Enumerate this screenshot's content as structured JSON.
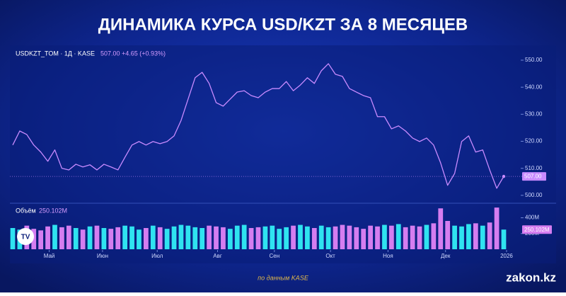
{
  "chart_data": {
    "type": "line",
    "title": "ДИНАМИКА КУРСА USD/KZT ЗА 8 МЕСЯЦЕВ",
    "symbol": "USDKZT_TOM · 1Д · KASE",
    "last_price": "507.00",
    "change": "+4.65 (+0.93%)",
    "source": "по данным KASE",
    "brand": "zakon.kz",
    "series": [
      {
        "color": "#c98bff",
        "values": [
          518.6,
          523.8,
          522.5,
          518.6,
          516,
          512.6,
          516.8,
          510,
          509.4,
          511.5,
          510.5,
          511.3,
          509.4,
          511.5,
          510.5,
          509.4,
          514.1,
          518.6,
          519.9,
          518.6,
          519.9,
          519.1,
          519.9,
          522,
          527.7,
          535.6,
          543.5,
          545.5,
          541.4,
          534.3,
          533,
          535.6,
          538.2,
          538.7,
          536.9,
          536.1,
          538.2,
          539.5,
          539.5,
          542.1,
          538.7,
          540.8,
          543.5,
          541.4,
          546.1,
          548.7,
          544.8,
          544,
          539.5,
          538.2,
          536.9,
          536.1,
          529.1,
          529.1,
          524.6,
          525.7,
          523.8,
          521.2,
          519.9,
          521.2,
          518.6,
          512,
          503.7,
          508.1,
          519.9,
          522,
          516,
          516.8,
          509.4,
          502.6,
          507
        ],
        "last_value_label": "507.00"
      }
    ],
    "xlim": [
      0,
      70
    ],
    "xticks": [
      {
        "value": 5.2,
        "label": "Май"
      },
      {
        "value": 12.8,
        "label": "Июн"
      },
      {
        "value": 20.6,
        "label": "Июл"
      },
      {
        "value": 29.2,
        "label": "Авг"
      },
      {
        "value": 37.3,
        "label": "Сен"
      },
      {
        "value": 45.3,
        "label": "Окт"
      },
      {
        "value": 53.5,
        "label": "Ноя"
      },
      {
        "value": 61.7,
        "label": "Дек"
      },
      {
        "value": 70.4,
        "label": "2026"
      }
    ],
    "ylim": [
      497.6,
      553.4
    ],
    "yticks": [
      {
        "value": 500,
        "label": "500.00"
      },
      {
        "value": 510,
        "label": "510.00"
      },
      {
        "value": 520,
        "label": "520.00"
      },
      {
        "value": 530,
        "label": "530.00"
      },
      {
        "value": 540,
        "label": "540.00"
      },
      {
        "value": 550,
        "label": "550.00"
      }
    ],
    "volume": {
      "name": "Объём",
      "up_color": "#2fe3f0",
      "down_color": "#d57df0",
      "values": [
        270,
        250,
        300,
        260,
        240,
        290,
        310,
        280,
        300,
        270,
        250,
        290,
        300,
        270,
        260,
        280,
        300,
        290,
        250,
        270,
        300,
        280,
        260,
        290,
        310,
        300,
        280,
        270,
        300,
        290,
        280,
        260,
        300,
        310,
        270,
        280,
        290,
        300,
        260,
        280,
        300,
        310,
        290,
        270,
        300,
        280,
        290,
        310,
        300,
        280,
        260,
        300,
        290,
        310,
        300,
        320,
        280,
        300,
        290,
        310,
        330,
        520,
        360,
        300,
        290,
        320,
        330,
        300,
        340,
        530,
        250.102
      ],
      "last_value_label": "250.102M",
      "ylim": [
        0,
        540
      ],
      "yticks": [
        {
          "value": 200,
          "label": "200M"
        },
        {
          "value": 400,
          "label": "400M"
        }
      ]
    }
  }
}
